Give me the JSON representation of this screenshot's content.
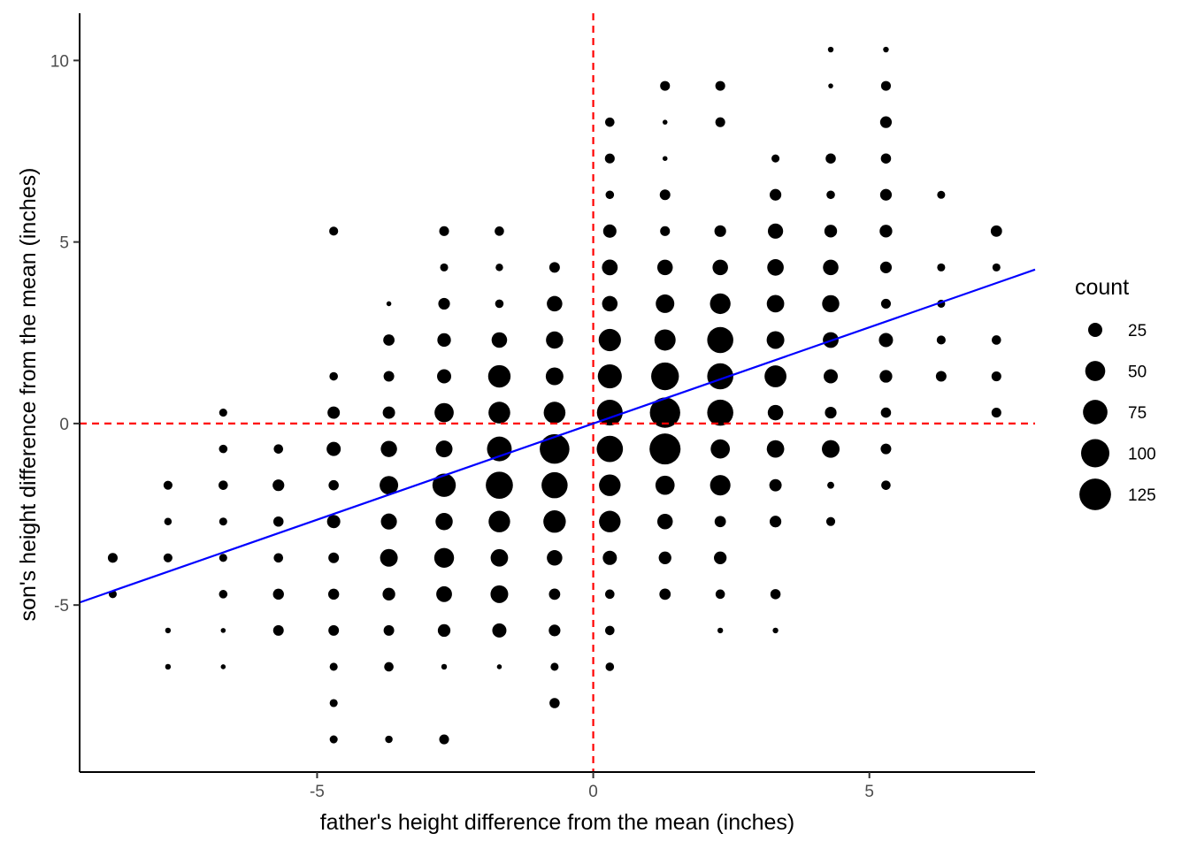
{
  "chart_data": {
    "type": "scatter",
    "title": "",
    "xlabel": "father's height difference from the mean (inches)",
    "ylabel": "son's height difference from the mean (inches)",
    "xlim": [
      -9.3,
      8.0
    ],
    "ylim": [
      -9.6,
      11.3
    ],
    "x_ticks": [
      {
        "value": -5,
        "label": "-5"
      },
      {
        "value": 0,
        "label": "0"
      },
      {
        "value": 5,
        "label": "5"
      }
    ],
    "y_ticks": [
      {
        "value": -5,
        "label": "-5"
      },
      {
        "value": 0,
        "label": "0"
      },
      {
        "value": 5,
        "label": "5"
      },
      {
        "value": 10,
        "label": "10"
      }
    ],
    "grid": false,
    "point_color": "#000000",
    "reference_lines": {
      "color": "#ff0000",
      "style": "dashed",
      "x": 0,
      "y": 0
    },
    "regression_line": {
      "color": "#0000ff",
      "intercept": 0,
      "slope": 0.53
    },
    "size_legend": {
      "title": "count",
      "placement": "right",
      "breaks": [
        25,
        50,
        75,
        100,
        125
      ]
    },
    "points": [
      {
        "x": -8.7,
        "y": -3.7,
        "count": 12
      },
      {
        "x": -8.7,
        "y": -4.7,
        "count": 8
      },
      {
        "x": -7.7,
        "y": -1.7,
        "count": 10
      },
      {
        "x": -7.7,
        "y": -2.7,
        "count": 7
      },
      {
        "x": -7.7,
        "y": -3.7,
        "count": 10
      },
      {
        "x": -7.7,
        "y": -5.7,
        "count": 4
      },
      {
        "x": -7.7,
        "y": -6.7,
        "count": 4
      },
      {
        "x": -6.7,
        "y": 0.3,
        "count": 8
      },
      {
        "x": -6.7,
        "y": -0.7,
        "count": 9
      },
      {
        "x": -6.7,
        "y": -1.7,
        "count": 11
      },
      {
        "x": -6.7,
        "y": -2.7,
        "count": 8
      },
      {
        "x": -6.7,
        "y": -3.7,
        "count": 8
      },
      {
        "x": -6.7,
        "y": -4.7,
        "count": 9
      },
      {
        "x": -6.7,
        "y": -5.7,
        "count": 3
      },
      {
        "x": -6.7,
        "y": -6.7,
        "count": 3
      },
      {
        "x": -5.7,
        "y": -0.7,
        "count": 11
      },
      {
        "x": -5.7,
        "y": -1.7,
        "count": 17
      },
      {
        "x": -5.7,
        "y": -2.7,
        "count": 13
      },
      {
        "x": -5.7,
        "y": -3.7,
        "count": 11
      },
      {
        "x": -5.7,
        "y": -4.7,
        "count": 15
      },
      {
        "x": -5.7,
        "y": -5.7,
        "count": 14
      },
      {
        "x": -4.7,
        "y": 5.3,
        "count": 10
      },
      {
        "x": -4.7,
        "y": 1.3,
        "count": 9
      },
      {
        "x": -4.7,
        "y": 0.3,
        "count": 19
      },
      {
        "x": -4.7,
        "y": -0.7,
        "count": 25
      },
      {
        "x": -4.7,
        "y": -1.7,
        "count": 13
      },
      {
        "x": -4.7,
        "y": -2.7,
        "count": 22
      },
      {
        "x": -4.7,
        "y": -3.7,
        "count": 14
      },
      {
        "x": -4.7,
        "y": -4.7,
        "count": 15
      },
      {
        "x": -4.7,
        "y": -5.7,
        "count": 14
      },
      {
        "x": -4.7,
        "y": -6.7,
        "count": 8
      },
      {
        "x": -4.7,
        "y": -7.7,
        "count": 8
      },
      {
        "x": -4.7,
        "y": -8.7,
        "count": 8
      },
      {
        "x": -3.7,
        "y": 3.3,
        "count": 3
      },
      {
        "x": -3.7,
        "y": 2.3,
        "count": 16
      },
      {
        "x": -3.7,
        "y": 1.3,
        "count": 14
      },
      {
        "x": -3.7,
        "y": 0.3,
        "count": 19
      },
      {
        "x": -3.7,
        "y": -0.7,
        "count": 33
      },
      {
        "x": -3.7,
        "y": -1.7,
        "count": 43
      },
      {
        "x": -3.7,
        "y": -2.7,
        "count": 32
      },
      {
        "x": -3.7,
        "y": -3.7,
        "count": 39
      },
      {
        "x": -3.7,
        "y": -4.7,
        "count": 20
      },
      {
        "x": -3.7,
        "y": -5.7,
        "count": 14
      },
      {
        "x": -3.7,
        "y": -6.7,
        "count": 11
      },
      {
        "x": -3.7,
        "y": -8.7,
        "count": 7
      },
      {
        "x": -2.7,
        "y": 5.3,
        "count": 12
      },
      {
        "x": -2.7,
        "y": 4.3,
        "count": 8
      },
      {
        "x": -2.7,
        "y": 3.3,
        "count": 17
      },
      {
        "x": -2.7,
        "y": 2.3,
        "count": 23
      },
      {
        "x": -2.7,
        "y": 1.3,
        "count": 25
      },
      {
        "x": -2.7,
        "y": 0.3,
        "count": 46
      },
      {
        "x": -2.7,
        "y": -0.7,
        "count": 35
      },
      {
        "x": -2.7,
        "y": -1.7,
        "count": 68
      },
      {
        "x": -2.7,
        "y": -2.7,
        "count": 37
      },
      {
        "x": -2.7,
        "y": -3.7,
        "count": 49
      },
      {
        "x": -2.7,
        "y": -4.7,
        "count": 31
      },
      {
        "x": -2.7,
        "y": -5.7,
        "count": 20
      },
      {
        "x": -2.7,
        "y": -6.7,
        "count": 4
      },
      {
        "x": -2.7,
        "y": -8.7,
        "count": 12
      },
      {
        "x": -1.7,
        "y": 5.3,
        "count": 11
      },
      {
        "x": -1.7,
        "y": 4.3,
        "count": 7
      },
      {
        "x": -1.7,
        "y": 3.3,
        "count": 9
      },
      {
        "x": -1.7,
        "y": 2.3,
        "count": 30
      },
      {
        "x": -1.7,
        "y": 1.3,
        "count": 63
      },
      {
        "x": -1.7,
        "y": 0.3,
        "count": 59
      },
      {
        "x": -1.7,
        "y": -0.7,
        "count": 76
      },
      {
        "x": -1.7,
        "y": -1.7,
        "count": 92
      },
      {
        "x": -1.7,
        "y": -2.7,
        "count": 58
      },
      {
        "x": -1.7,
        "y": -3.7,
        "count": 38
      },
      {
        "x": -1.7,
        "y": -4.7,
        "count": 39
      },
      {
        "x": -1.7,
        "y": -5.7,
        "count": 25
      },
      {
        "x": -1.7,
        "y": -6.7,
        "count": 3
      },
      {
        "x": -0.7,
        "y": 4.3,
        "count": 14
      },
      {
        "x": -0.7,
        "y": 3.3,
        "count": 30
      },
      {
        "x": -0.7,
        "y": 2.3,
        "count": 37
      },
      {
        "x": -0.7,
        "y": 1.3,
        "count": 39
      },
      {
        "x": -0.7,
        "y": 0.3,
        "count": 59
      },
      {
        "x": -0.7,
        "y": -0.7,
        "count": 110
      },
      {
        "x": -0.7,
        "y": -1.7,
        "count": 85
      },
      {
        "x": -0.7,
        "y": -2.7,
        "count": 63
      },
      {
        "x": -0.7,
        "y": -3.7,
        "count": 30
      },
      {
        "x": -0.7,
        "y": -4.7,
        "count": 16
      },
      {
        "x": -0.7,
        "y": -5.7,
        "count": 17
      },
      {
        "x": -0.7,
        "y": -6.7,
        "count": 8
      },
      {
        "x": -0.7,
        "y": -7.7,
        "count": 13
      },
      {
        "x": 0.3,
        "y": 8.3,
        "count": 11
      },
      {
        "x": 0.3,
        "y": 7.3,
        "count": 12
      },
      {
        "x": 0.3,
        "y": 6.3,
        "count": 9
      },
      {
        "x": 0.3,
        "y": 5.3,
        "count": 22
      },
      {
        "x": 0.3,
        "y": 4.3,
        "count": 31
      },
      {
        "x": 0.3,
        "y": 3.3,
        "count": 30
      },
      {
        "x": 0.3,
        "y": 2.3,
        "count": 62
      },
      {
        "x": 0.3,
        "y": 1.3,
        "count": 72
      },
      {
        "x": 0.3,
        "y": 0.3,
        "count": 83
      },
      {
        "x": 0.3,
        "y": -0.7,
        "count": 86
      },
      {
        "x": 0.3,
        "y": -1.7,
        "count": 58
      },
      {
        "x": 0.3,
        "y": -2.7,
        "count": 58
      },
      {
        "x": 0.3,
        "y": -3.7,
        "count": 25
      },
      {
        "x": 0.3,
        "y": -4.7,
        "count": 11
      },
      {
        "x": 0.3,
        "y": -5.7,
        "count": 11
      },
      {
        "x": 0.3,
        "y": -6.7,
        "count": 9
      },
      {
        "x": 1.3,
        "y": 9.3,
        "count": 12
      },
      {
        "x": 1.3,
        "y": 8.3,
        "count": 3
      },
      {
        "x": 1.3,
        "y": 7.3,
        "count": 3
      },
      {
        "x": 1.3,
        "y": 6.3,
        "count": 14
      },
      {
        "x": 1.3,
        "y": 5.3,
        "count": 12
      },
      {
        "x": 1.3,
        "y": 4.3,
        "count": 30
      },
      {
        "x": 1.3,
        "y": 3.3,
        "count": 43
      },
      {
        "x": 1.3,
        "y": 2.3,
        "count": 56
      },
      {
        "x": 1.3,
        "y": 1.3,
        "count": 96
      },
      {
        "x": 1.3,
        "y": 0.3,
        "count": 115
      },
      {
        "x": 1.3,
        "y": -0.7,
        "count": 120
      },
      {
        "x": 1.3,
        "y": -1.7,
        "count": 46
      },
      {
        "x": 1.3,
        "y": -2.7,
        "count": 30
      },
      {
        "x": 1.3,
        "y": -3.7,
        "count": 20
      },
      {
        "x": 1.3,
        "y": -4.7,
        "count": 16
      },
      {
        "x": 2.3,
        "y": 9.3,
        "count": 12
      },
      {
        "x": 2.3,
        "y": 8.3,
        "count": 12
      },
      {
        "x": 2.3,
        "y": 5.3,
        "count": 17
      },
      {
        "x": 2.3,
        "y": 4.3,
        "count": 30
      },
      {
        "x": 2.3,
        "y": 3.3,
        "count": 53
      },
      {
        "x": 2.3,
        "y": 2.3,
        "count": 85
      },
      {
        "x": 2.3,
        "y": 1.3,
        "count": 85
      },
      {
        "x": 2.3,
        "y": 0.3,
        "count": 85
      },
      {
        "x": 2.3,
        "y": -0.7,
        "count": 46
      },
      {
        "x": 2.3,
        "y": -1.7,
        "count": 52
      },
      {
        "x": 2.3,
        "y": -2.7,
        "count": 16
      },
      {
        "x": 2.3,
        "y": -3.7,
        "count": 20
      },
      {
        "x": 2.3,
        "y": -4.7,
        "count": 11
      },
      {
        "x": 2.3,
        "y": -5.7,
        "count": 4
      },
      {
        "x": 3.3,
        "y": 7.3,
        "count": 8
      },
      {
        "x": 3.3,
        "y": 6.3,
        "count": 17
      },
      {
        "x": 3.3,
        "y": 5.3,
        "count": 29
      },
      {
        "x": 3.3,
        "y": 4.3,
        "count": 34
      },
      {
        "x": 3.3,
        "y": 3.3,
        "count": 38
      },
      {
        "x": 3.3,
        "y": 2.3,
        "count": 39
      },
      {
        "x": 3.3,
        "y": 1.3,
        "count": 60
      },
      {
        "x": 3.3,
        "y": 0.3,
        "count": 30
      },
      {
        "x": 3.3,
        "y": -0.7,
        "count": 38
      },
      {
        "x": 3.3,
        "y": -1.7,
        "count": 19
      },
      {
        "x": 3.3,
        "y": -2.7,
        "count": 17
      },
      {
        "x": 3.3,
        "y": -4.7,
        "count": 13
      },
      {
        "x": 3.3,
        "y": -5.7,
        "count": 4
      },
      {
        "x": 4.3,
        "y": 10.3,
        "count": 4
      },
      {
        "x": 4.3,
        "y": 9.3,
        "count": 3
      },
      {
        "x": 4.3,
        "y": 7.3,
        "count": 13
      },
      {
        "x": 4.3,
        "y": 6.3,
        "count": 9
      },
      {
        "x": 4.3,
        "y": 5.3,
        "count": 20
      },
      {
        "x": 4.3,
        "y": 4.3,
        "count": 30
      },
      {
        "x": 4.3,
        "y": 3.3,
        "count": 37
      },
      {
        "x": 4.3,
        "y": 2.3,
        "count": 31
      },
      {
        "x": 4.3,
        "y": 1.3,
        "count": 25
      },
      {
        "x": 4.3,
        "y": 0.3,
        "count": 17
      },
      {
        "x": 4.3,
        "y": -0.7,
        "count": 39
      },
      {
        "x": 4.3,
        "y": -1.7,
        "count": 6
      },
      {
        "x": 4.3,
        "y": -2.7,
        "count": 10
      },
      {
        "x": 5.3,
        "y": 10.3,
        "count": 4
      },
      {
        "x": 5.3,
        "y": 9.3,
        "count": 12
      },
      {
        "x": 5.3,
        "y": 8.3,
        "count": 17
      },
      {
        "x": 5.3,
        "y": 7.3,
        "count": 13
      },
      {
        "x": 5.3,
        "y": 6.3,
        "count": 17
      },
      {
        "x": 5.3,
        "y": 5.3,
        "count": 20
      },
      {
        "x": 5.3,
        "y": 4.3,
        "count": 17
      },
      {
        "x": 5.3,
        "y": 3.3,
        "count": 12
      },
      {
        "x": 5.3,
        "y": 2.3,
        "count": 25
      },
      {
        "x": 5.3,
        "y": 1.3,
        "count": 20
      },
      {
        "x": 5.3,
        "y": 0.3,
        "count": 13
      },
      {
        "x": 5.3,
        "y": -0.7,
        "count": 14
      },
      {
        "x": 5.3,
        "y": -1.7,
        "count": 11
      },
      {
        "x": 6.3,
        "y": 6.3,
        "count": 8
      },
      {
        "x": 6.3,
        "y": 4.3,
        "count": 8
      },
      {
        "x": 6.3,
        "y": 3.3,
        "count": 8
      },
      {
        "x": 6.3,
        "y": 2.3,
        "count": 10
      },
      {
        "x": 6.3,
        "y": 1.3,
        "count": 14
      },
      {
        "x": 7.3,
        "y": 5.3,
        "count": 16
      },
      {
        "x": 7.3,
        "y": 4.3,
        "count": 8
      },
      {
        "x": 7.3,
        "y": 2.3,
        "count": 11
      },
      {
        "x": 7.3,
        "y": 1.3,
        "count": 12
      },
      {
        "x": 7.3,
        "y": 0.3,
        "count": 12
      }
    ]
  }
}
